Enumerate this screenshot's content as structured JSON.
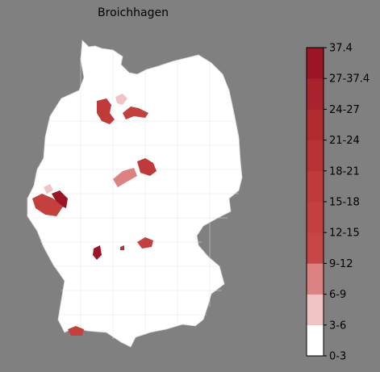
{
  "map": {
    "title": "Broichhagen",
    "base_fill": "#ffffff",
    "background": "#808080",
    "highlight_regions": [
      {
        "id": "region-north-west",
        "value_bin": "21-24"
      },
      {
        "id": "region-north-small",
        "value_bin": "3-6"
      },
      {
        "id": "region-north-east",
        "value_bin": "18-21"
      },
      {
        "id": "region-central-east",
        "value_bin": "21-24"
      },
      {
        "id": "region-central",
        "value_bin": "12-15"
      },
      {
        "id": "region-west-small",
        "value_bin": "3-6"
      },
      {
        "id": "region-west-dark",
        "value_bin": "27-37.4"
      },
      {
        "id": "region-west",
        "value_bin": "18-21"
      },
      {
        "id": "region-southwest-dark",
        "value_bin": "27-37.4"
      },
      {
        "id": "region-south-central",
        "value_bin": "18-21"
      },
      {
        "id": "region-south-small",
        "value_bin": "21-24"
      },
      {
        "id": "region-south-border",
        "value_bin": "18-21"
      }
    ]
  },
  "legend": {
    "ticks": [
      "0-3",
      "3-6",
      "6-9",
      "9-12",
      "12-15",
      "15-18",
      "18-21",
      "21-24",
      "24-27",
      "27-37.4",
      "37.4"
    ],
    "colors": [
      "#ffffff",
      "#f0c4c4",
      "#dc8282",
      "#c84646",
      "#c4403f",
      "#c0393b",
      "#b93235",
      "#b12b30",
      "#a8232b",
      "#9c1526"
    ]
  }
}
